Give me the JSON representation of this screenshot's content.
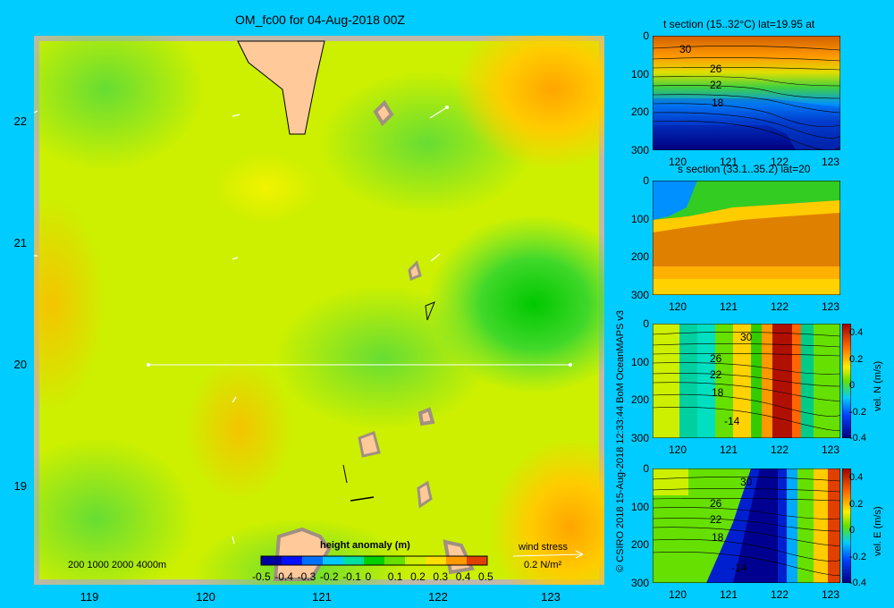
{
  "title": "OM_fc00 for 04-Aug-2018 00Z",
  "map": {
    "x_ticks": [
      "119",
      "120",
      "121",
      "122",
      "123"
    ],
    "y_ticks": [
      "22",
      "21",
      "20",
      "19"
    ],
    "depth_contours_label": "200  1000  2000  4000m",
    "colorbar_title": "height anomaly  (m)",
    "colorbar_ticks": [
      "-0.5",
      "-0.4",
      "-0.3",
      "-0.2",
      "-0.1",
      "0",
      "0.1",
      "0.2",
      "0.3",
      "0.4",
      "0.5"
    ],
    "wind_stress_label": "wind stress",
    "wind_stress_scale": "0.2 N/m²",
    "section_latitude": 20
  },
  "credit": "© CSIRO 2018   15-Aug-2018 12:33:44 BoM OceanMAPS v3",
  "panels": [
    {
      "title": "t section (15..32°C) lat=19.95 at",
      "y_ticks": [
        "0",
        "100",
        "200",
        "300"
      ],
      "x_ticks": [
        "120",
        "121",
        "122",
        "123"
      ],
      "contour_labels": [
        "30",
        "26",
        "22",
        "18"
      ]
    },
    {
      "title": "s section (33.1..35.2) lat=20",
      "y_ticks": [
        "0",
        "100",
        "200",
        "300"
      ],
      "x_ticks": [
        "120",
        "121",
        "122",
        "123"
      ],
      "contour_labels": []
    },
    {
      "title": "",
      "y_ticks": [
        "0",
        "100",
        "200",
        "300"
      ],
      "x_ticks": [
        "120",
        "121",
        "122",
        "123"
      ],
      "contour_labels": [
        "30",
        "26",
        "22",
        "18",
        "-14"
      ],
      "colorbar_title": "vel. N (m/s)",
      "colorbar_ticks": [
        "0.4",
        "0.2",
        "0",
        "-0.2",
        "-0.4"
      ]
    },
    {
      "title": "",
      "y_ticks": [
        "0",
        "100",
        "200",
        "300"
      ],
      "x_ticks": [
        "120",
        "121",
        "122",
        "123"
      ],
      "contour_labels": [
        "30",
        "26",
        "22",
        "18",
        "-14"
      ],
      "colorbar_title": "vel. E (m/s)",
      "colorbar_ticks": [
        "0.4",
        "0.2",
        "0",
        "-0.2",
        "-0.4"
      ]
    }
  ]
}
